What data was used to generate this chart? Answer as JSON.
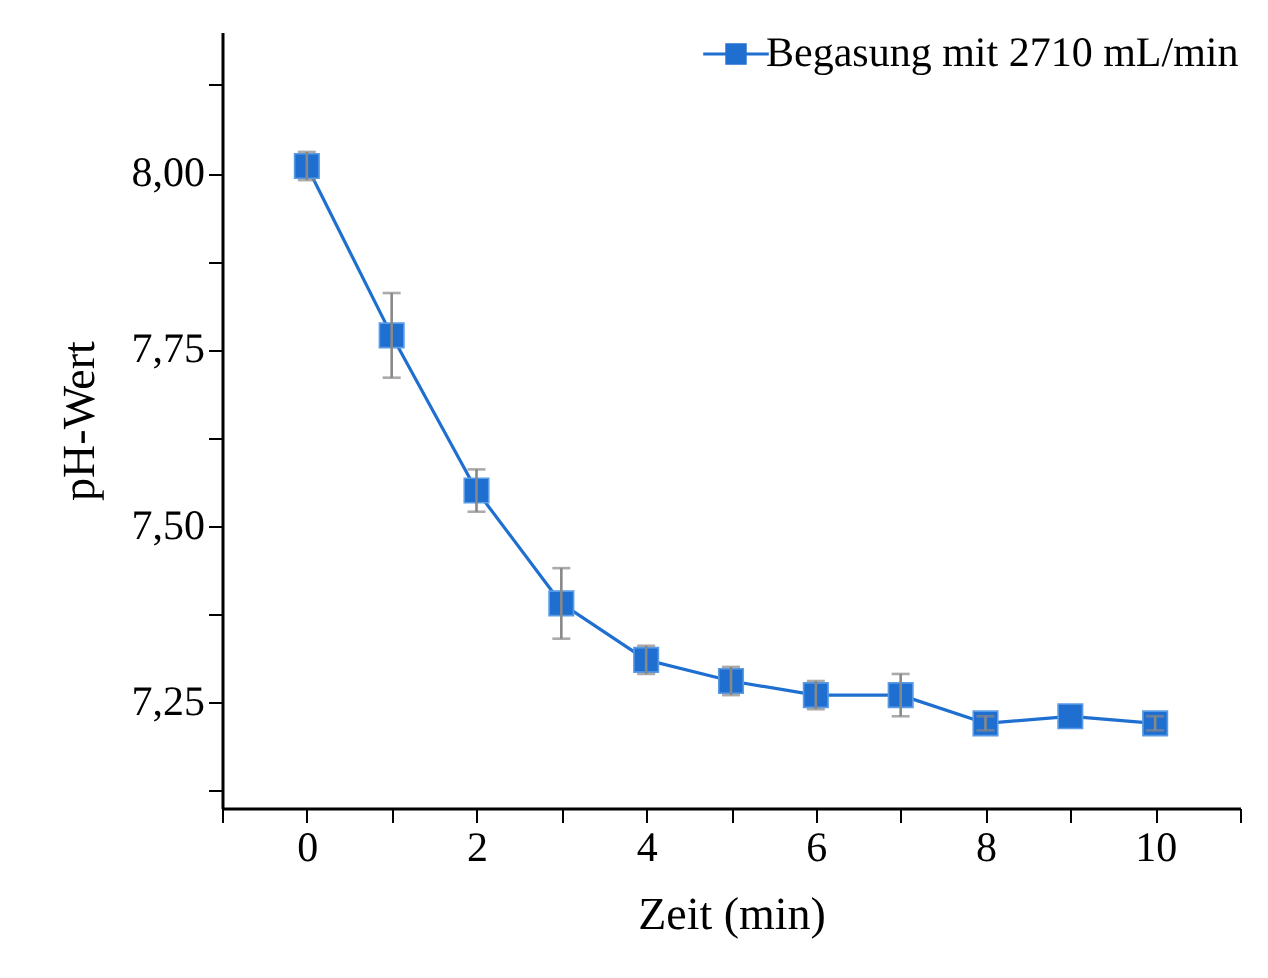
{
  "chart_data": {
    "type": "line",
    "xlabel": "Zeit (min)",
    "ylabel": "pH-Wert",
    "x": [
      0,
      1,
      2,
      3,
      4,
      5,
      6,
      7,
      8,
      9,
      10
    ],
    "series": [
      {
        "name": "Begasung mit 2710 mL/min",
        "color": "#1f6fd1",
        "values": [
          8.01,
          7.77,
          7.55,
          7.39,
          7.31,
          7.28,
          7.26,
          7.26,
          7.22,
          7.23,
          7.22
        ],
        "errors": [
          0.02,
          0.06,
          0.03,
          0.05,
          0.02,
          0.02,
          0.02,
          0.03,
          0.01,
          null,
          0.01
        ]
      }
    ],
    "xlim": [
      -1,
      11
    ],
    "ylim": [
      7.1,
      8.2
    ],
    "xticks": [
      {
        "value": -1,
        "label": null
      },
      0,
      {
        "value": 1,
        "label": null
      },
      2,
      {
        "value": 3,
        "label": null
      },
      4,
      {
        "value": 5,
        "label": null
      },
      6,
      {
        "value": 7,
        "label": null
      },
      8,
      {
        "value": 9,
        "label": null
      },
      10,
      {
        "value": 11,
        "label": null
      }
    ],
    "yticks": [
      {
        "value": 7.125,
        "label": null
      },
      {
        "value": 7.25,
        "label": "7,25"
      },
      {
        "value": 7.375,
        "label": null
      },
      {
        "value": 7.5,
        "label": "7,50"
      },
      {
        "value": 7.625,
        "label": null
      },
      {
        "value": 7.75,
        "label": "7,75"
      },
      {
        "value": 7.875,
        "label": null
      },
      {
        "value": 8.0,
        "label": "8,00"
      },
      {
        "value": 8.125,
        "label": null
      }
    ],
    "marker": "square",
    "line_style": "solid",
    "grid": false,
    "legend": "top right"
  }
}
